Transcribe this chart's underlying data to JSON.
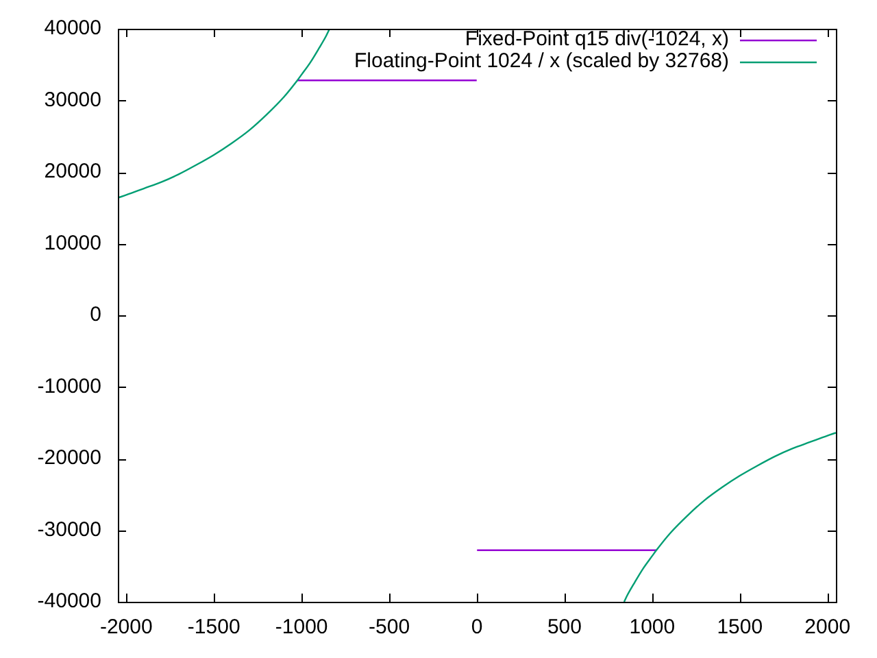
{
  "chart_data": {
    "type": "line",
    "xlim": [
      -2048,
      2048
    ],
    "xticks": [
      -2000,
      -1500,
      -1000,
      -500,
      0,
      500,
      1000,
      1500,
      2000
    ],
    "ylim": [
      -40000,
      40000
    ],
    "yticks": [
      -40000,
      -30000,
      -20000,
      -10000,
      0,
      10000,
      20000,
      30000,
      40000
    ],
    "legend": "top right",
    "marker": "none",
    "grid": false,
    "series": [
      {
        "name": "Fixed-Point q15 div(-1024, x)",
        "color": "#9400d3",
        "x": [
          -1024,
          -1,
          0,
          1,
          1024
        ],
        "values": [
          32800,
          32800,
          null,
          -32800,
          -32800
        ]
      },
      {
        "name": "Floating-Point 1024 / x (scaled by 32768)",
        "color": "#009e73",
        "x": [
          -2048,
          -2000,
          -1900,
          -1800,
          -1700,
          -1600,
          -1500,
          -1400,
          -1300,
          -1200,
          -1100,
          -1024,
          -1000,
          -950,
          -900,
          -860,
          -840,
          0,
          840,
          860,
          900,
          950,
          1000,
          1024,
          1100,
          1200,
          1300,
          1400,
          1500,
          1600,
          1700,
          1800,
          1900,
          2000,
          2048
        ],
        "values": [
          16400,
          16800,
          17700,
          18600,
          19700,
          21000,
          22400,
          24000,
          25800,
          28000,
          30500,
          32800,
          33600,
          35300,
          37300,
          39000,
          40000,
          null,
          -40000,
          -39000,
          -37300,
          -35300,
          -33600,
          -32800,
          -30500,
          -28000,
          -25800,
          -24000,
          -22400,
          -21000,
          -19700,
          -18600,
          -17700,
          -16800,
          -16400
        ]
      }
    ]
  }
}
